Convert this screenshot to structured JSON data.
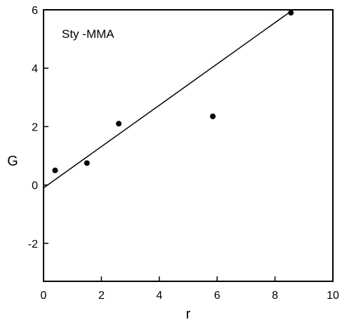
{
  "chart_data": {
    "type": "scatter",
    "title": "",
    "xlabel": "r",
    "ylabel": "G",
    "xlim": [
      0,
      10
    ],
    "ylim": [
      -3.3,
      6
    ],
    "x_ticks": [
      0,
      2,
      4,
      6,
      8,
      10
    ],
    "x_tick_labels": [
      "0",
      "2",
      "4",
      "6",
      "8",
      "10"
    ],
    "y_ticks": [
      -2,
      0,
      2,
      4,
      6
    ],
    "y_tick_labels": [
      "-2",
      "0",
      "2",
      "4",
      "6"
    ],
    "grid": false,
    "annotation": "Sty -MMA",
    "series": [
      {
        "points": [
          {
            "x": 0.4,
            "y": 0.5
          },
          {
            "x": 1.5,
            "y": 0.75
          },
          {
            "x": 2.6,
            "y": 2.1
          },
          {
            "x": 5.85,
            "y": 2.35
          },
          {
            "x": 8.55,
            "y": 5.9
          }
        ]
      }
    ],
    "fit_line": {
      "x": [
        0,
        8.55
      ],
      "y": [
        -0.1,
        5.95
      ]
    }
  }
}
